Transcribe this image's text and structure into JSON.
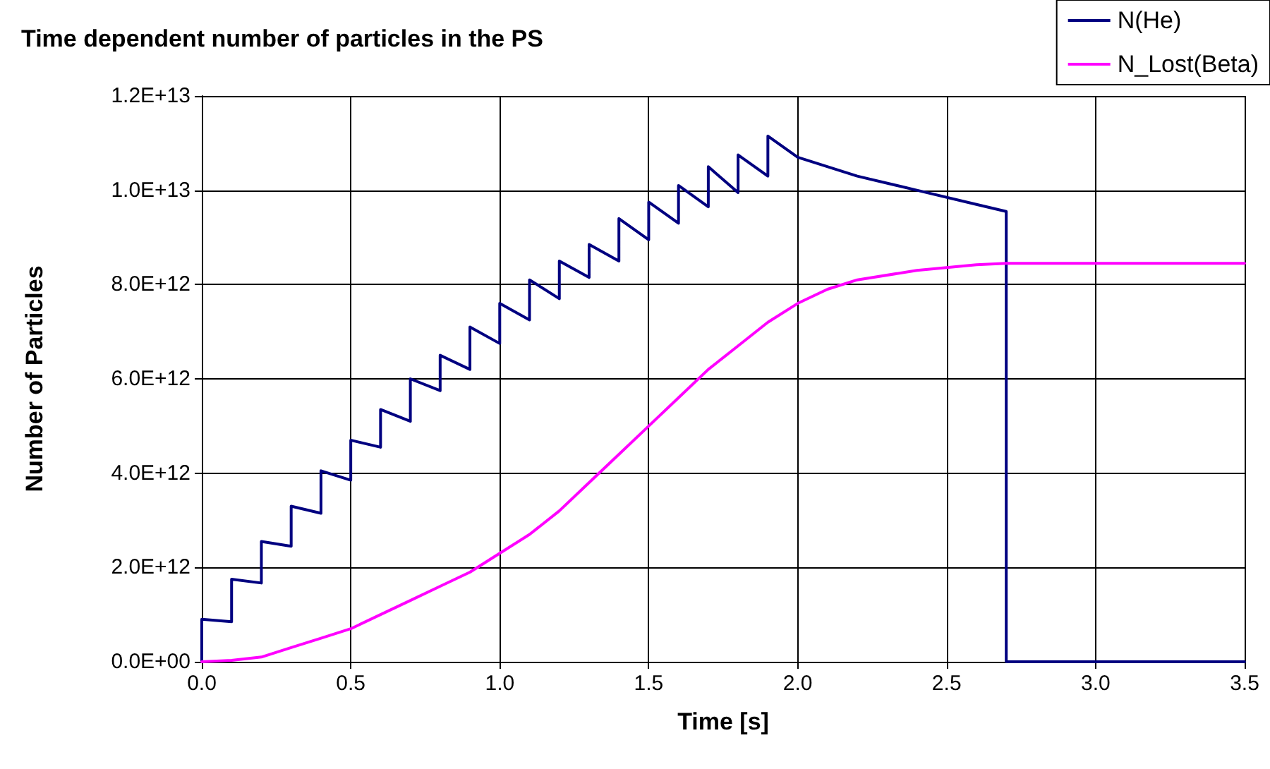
{
  "chart_data": {
    "type": "line",
    "title": "Time dependent number of particles in the PS",
    "xlabel": "Time [s]",
    "ylabel": "Number of Particles",
    "xlim": [
      0,
      3.5
    ],
    "xticks": [
      {
        "value": 0,
        "label": "0.0"
      },
      {
        "value": 0.5,
        "label": "0.5"
      },
      {
        "value": 1,
        "label": "1.0"
      },
      {
        "value": 1.5,
        "label": "1.5"
      },
      {
        "value": 2,
        "label": "2.0"
      },
      {
        "value": 2.5,
        "label": "2.5"
      },
      {
        "value": 3,
        "label": "3.0"
      },
      {
        "value": 3.5,
        "label": "3.5"
      }
    ],
    "ylim": [
      0,
      12000000000000.0
    ],
    "yticks": [
      {
        "value": 0,
        "label": "0.0E+00"
      },
      {
        "value": 2000000000000.0,
        "label": "2.0E+12"
      },
      {
        "value": 4000000000000.0,
        "label": "4.0E+12"
      },
      {
        "value": 6000000000000.0,
        "label": "6.0E+12"
      },
      {
        "value": 8000000000000.0,
        "label": "8.0E+12"
      },
      {
        "value": 10000000000000.0,
        "label": "1.0E+13"
      },
      {
        "value": 12000000000000.0,
        "label": "1.2E+13"
      }
    ],
    "grid": true,
    "legend": "top right",
    "marker": "none",
    "line_style": "solid",
    "series": [
      {
        "name": "N(He)",
        "color": "#000080",
        "x": [
          0,
          0,
          0.1,
          0.1,
          0.2,
          0.2,
          0.3,
          0.3,
          0.4,
          0.4,
          0.5,
          0.5,
          0.6,
          0.6,
          0.7,
          0.7,
          0.8,
          0.8,
          0.9,
          0.9,
          1.0,
          1.0,
          1.1,
          1.1,
          1.2,
          1.2,
          1.3,
          1.3,
          1.4,
          1.4,
          1.5,
          1.5,
          1.6,
          1.6,
          1.7,
          1.7,
          1.8,
          1.8,
          1.9,
          1.9,
          2.0,
          2.2,
          2.4,
          2.6,
          2.7,
          2.7,
          3.5
        ],
        "values": [
          0,
          900000000000.0,
          850000000000.0,
          1750000000000.0,
          1670000000000.0,
          2550000000000.0,
          2450000000000.0,
          3300000000000.0,
          3150000000000.0,
          4050000000000.0,
          3850000000000.0,
          4700000000000.0,
          4550000000000.0,
          5350000000000.0,
          5100000000000.0,
          6000000000000.0,
          5750000000000.0,
          6500000000000.0,
          6200000000000.0,
          7100000000000.0,
          6750000000000.0,
          7600000000000.0,
          7250000000000.0,
          8100000000000.0,
          7700000000000.0,
          8500000000000.0,
          8150000000000.0,
          8850000000000.0,
          8500000000000.0,
          9400000000000.0,
          8950000000000.0,
          9750000000000.0,
          9300000000000.0,
          10100000000000.0,
          9650000000000.0,
          10500000000000.0,
          9950000000000.0,
          10750000000000.0,
          10300000000000.0,
          11150000000000.0,
          10700000000000.0,
          10300000000000.0,
          10000000000000.0,
          9700000000000.0,
          9550000000000.0,
          0,
          0
        ]
      },
      {
        "name": "N_Lost(Beta)",
        "color": "#ff00ff",
        "x": [
          0,
          0.1,
          0.2,
          0.3,
          0.4,
          0.5,
          0.6,
          0.7,
          0.8,
          0.9,
          1.0,
          1.1,
          1.2,
          1.3,
          1.4,
          1.5,
          1.6,
          1.7,
          1.8,
          1.9,
          2.0,
          2.1,
          2.2,
          2.4,
          2.6,
          2.7,
          3.5
        ],
        "values": [
          0,
          30000000000.0,
          100000000000.0,
          300000000000.0,
          500000000000.0,
          700000000000.0,
          1000000000000.0,
          1300000000000.0,
          1600000000000.0,
          1900000000000.0,
          2300000000000.0,
          2700000000000.0,
          3200000000000.0,
          3800000000000.0,
          4400000000000.0,
          5000000000000.0,
          5600000000000.0,
          6200000000000.0,
          6700000000000.0,
          7200000000000.0,
          7600000000000.0,
          7900000000000.0,
          8100000000000.0,
          8300000000000.0,
          8420000000000.0,
          8450000000000.0,
          8450000000000.0
        ]
      }
    ]
  }
}
